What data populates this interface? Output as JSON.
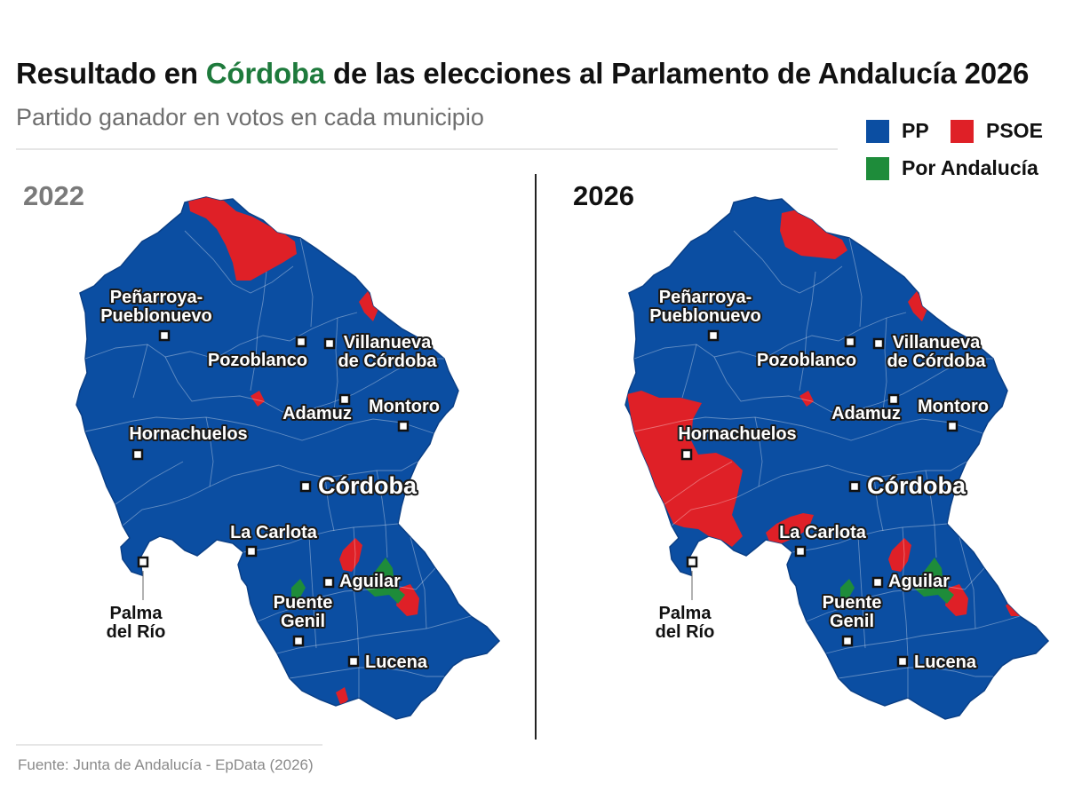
{
  "title": {
    "prefix": "Resultado en ",
    "highlight": "Córdoba",
    "suffix": " de las elecciones al Parlamento de Andalucía 2026"
  },
  "subtitle": "Partido ganador en votos en cada municipio",
  "colors": {
    "PP": "#0b4ea2",
    "PSOE": "#df2027",
    "Por Andalucia": "#1e8c3a",
    "highlight": "#1e7a3c"
  },
  "legend": [
    {
      "party": "PP",
      "color": "#0b4ea2"
    },
    {
      "party": "PSOE",
      "color": "#df2027"
    },
    {
      "party": "Por Andalucía",
      "color": "#1e8c3a"
    }
  ],
  "panels": [
    {
      "year": "2022",
      "year_color": "#7a7a7a"
    },
    {
      "year": "2026",
      "year_color": "#111111"
    }
  ],
  "cities": [
    {
      "id": "penarroya",
      "lines": [
        "Peñarroya-",
        "Pueblonuevo"
      ]
    },
    {
      "id": "pozoblanco",
      "lines": [
        "Pozoblanco"
      ]
    },
    {
      "id": "villanueva",
      "lines": [
        "Villanueva",
        "de Córdoba"
      ]
    },
    {
      "id": "adamuz",
      "lines": [
        "Adamuz"
      ]
    },
    {
      "id": "montoro",
      "lines": [
        "Montoro"
      ]
    },
    {
      "id": "hornachuelos",
      "lines": [
        "Hornachuelos"
      ]
    },
    {
      "id": "cordoba",
      "lines": [
        "Córdoba"
      ]
    },
    {
      "id": "lacarlota",
      "lines": [
        "La Carlota"
      ]
    },
    {
      "id": "aguilar",
      "lines": [
        "Aguilar"
      ]
    },
    {
      "id": "puentegenil",
      "lines": [
        "Puente",
        "Genil"
      ]
    },
    {
      "id": "lucena",
      "lines": [
        "Lucena"
      ]
    },
    {
      "id": "palma",
      "lines": [
        "Palma",
        "del Río"
      ]
    }
  ],
  "winners": {
    "2022": {
      "PP": "most municipalities",
      "PSOE": [
        "north",
        "northeast",
        "east-center",
        "center-south",
        "south-east",
        "south"
      ],
      "Por Andalucia": [
        "south-center",
        "south-west"
      ]
    },
    "2026": {
      "PP": "most municipalities",
      "PSOE": [
        "north",
        "northeast",
        "east-center",
        "west (Hornachuelos)",
        "La Carlota",
        "center-south",
        "south-east",
        "far south-east"
      ],
      "Por Andalucia": [
        "south-center",
        "south-west"
      ]
    }
  },
  "source": "Fuente: Junta de Andalucía - EpData (2026)"
}
